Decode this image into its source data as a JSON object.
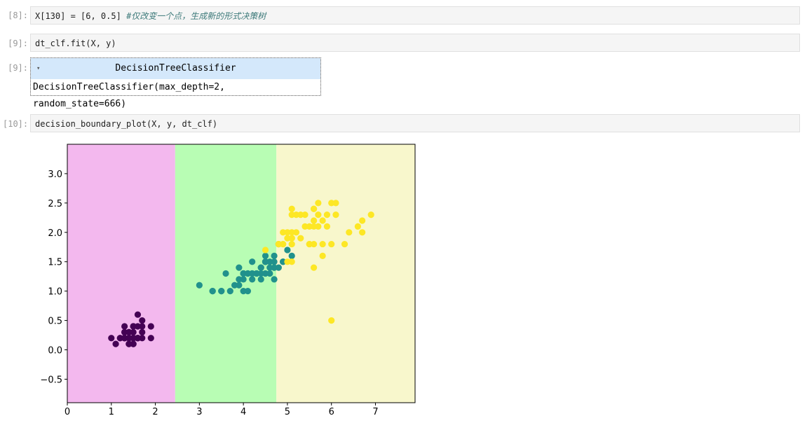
{
  "cells": [
    {
      "prompt": "[8]:",
      "code": "X[130] = [6, 0.5]",
      "comment": "#仅改变一个点，生成新的形式决策树"
    },
    {
      "prompt": "[9]:",
      "code": "dt_clf.fit(X, y)"
    },
    {
      "prompt": "[10]:",
      "code": "decision_boundary_plot(X, y, dt_clf)"
    }
  ],
  "output": {
    "prompt": "[9]:",
    "header": "DecisionTreeClassifier",
    "repr": "DecisionTreeClassifier(max_depth=2, random_state=666)"
  },
  "chart_data": {
    "type": "scatter",
    "xlim": [
      0,
      7.9
    ],
    "ylim": [
      -0.9,
      3.5
    ],
    "xticks": [
      0,
      1,
      2,
      3,
      4,
      5,
      6,
      7
    ],
    "yticks": [
      {
        "value": -0.5,
        "label": "−0.5"
      },
      {
        "value": 0,
        "label": "0.0"
      },
      {
        "value": 0.5,
        "label": "0.5"
      },
      {
        "value": 1,
        "label": "1.0"
      },
      {
        "value": 1.5,
        "label": "1.5"
      },
      {
        "value": 2,
        "label": "2.0"
      },
      {
        "value": 2.5,
        "label": "2.5"
      },
      {
        "value": 3,
        "label": "3.0"
      }
    ],
    "regions": [
      {
        "x": [
          0,
          2.45
        ],
        "color": "#f3b8ee"
      },
      {
        "x": [
          2.45,
          4.75
        ],
        "color": "#b8fdb4"
      },
      {
        "x": [
          4.75,
          7.9
        ],
        "color": "#f8f7cc"
      }
    ],
    "series": [
      {
        "color": "#440154",
        "x": [
          1.4,
          1.4,
          1.3,
          1.5,
          1.4,
          1.7,
          1.4,
          1.5,
          1.4,
          1.5,
          1.5,
          1.6,
          1.4,
          1.1,
          1.2,
          1.5,
          1.3,
          1.4,
          1.7,
          1.5,
          1.7,
          1.5,
          1.0,
          1.7,
          1.9,
          1.6,
          1.6,
          1.5,
          1.4,
          1.6,
          1.6,
          1.5,
          1.5,
          1.4,
          1.5,
          1.2,
          1.3,
          1.4,
          1.3,
          1.5,
          1.3,
          1.3,
          1.3,
          1.6,
          1.9,
          1.4,
          1.6,
          1.4,
          1.5,
          1.4
        ],
        "values": [
          0.2,
          0.2,
          0.2,
          0.2,
          0.2,
          0.4,
          0.3,
          0.2,
          0.2,
          0.1,
          0.2,
          0.2,
          0.1,
          0.1,
          0.2,
          0.4,
          0.4,
          0.3,
          0.3,
          0.3,
          0.2,
          0.4,
          0.2,
          0.5,
          0.2,
          0.2,
          0.4,
          0.2,
          0.2,
          0.2,
          0.2,
          0.4,
          0.1,
          0.2,
          0.2,
          0.2,
          0.2,
          0.1,
          0.2,
          0.2,
          0.3,
          0.3,
          0.2,
          0.6,
          0.4,
          0.3,
          0.2,
          0.2,
          0.2,
          0.2
        ]
      },
      {
        "color": "#21918c",
        "x": [
          4.7,
          4.5,
          4.9,
          4.0,
          4.6,
          4.5,
          4.7,
          3.3,
          4.6,
          3.9,
          3.5,
          4.2,
          4.0,
          4.7,
          3.6,
          4.4,
          4.5,
          4.1,
          4.5,
          3.9,
          4.8,
          4.0,
          4.9,
          4.7,
          4.3,
          4.4,
          4.8,
          5.0,
          4.5,
          3.5,
          3.8,
          3.7,
          3.9,
          5.1,
          4.5,
          4.5,
          4.7,
          4.4,
          4.1,
          4.0,
          4.4,
          4.6,
          4.0,
          3.3,
          4.2,
          4.2,
          4.2,
          4.3,
          3.0,
          4.1
        ],
        "values": [
          1.4,
          1.5,
          1.5,
          1.3,
          1.5,
          1.3,
          1.6,
          1.0,
          1.3,
          1.4,
          1.0,
          1.5,
          1.0,
          1.4,
          1.3,
          1.4,
          1.5,
          1.0,
          1.5,
          1.1,
          1.8,
          1.3,
          1.5,
          1.2,
          1.3,
          1.4,
          1.4,
          1.7,
          1.5,
          1.0,
          1.1,
          1.0,
          1.2,
          1.6,
          1.5,
          1.6,
          1.5,
          1.3,
          1.3,
          1.3,
          1.2,
          1.4,
          1.2,
          1.0,
          1.3,
          1.2,
          1.3,
          1.3,
          1.1,
          1.3
        ]
      },
      {
        "color": "#fde725",
        "x": [
          6.0,
          5.1,
          5.9,
          5.6,
          5.8,
          6.6,
          4.5,
          6.3,
          5.8,
          6.1,
          5.1,
          5.3,
          5.5,
          5.0,
          5.1,
          5.3,
          5.5,
          6.7,
          6.9,
          5.0,
          5.7,
          4.9,
          6.7,
          4.9,
          5.7,
          6.0,
          4.8,
          4.9,
          5.6,
          5.8,
          6,
          6.4,
          5.6,
          5.1,
          5.6,
          6.1,
          5.6,
          5.5,
          4.8,
          5.4,
          5.6,
          5.1,
          5.1,
          5.9,
          5.7,
          5.2,
          5.0,
          5.2,
          5.4,
          5.1
        ],
        "values": [
          2.5,
          1.9,
          2.1,
          1.8,
          2.2,
          2.1,
          1.7,
          1.8,
          1.8,
          2.5,
          2.0,
          1.9,
          2.1,
          2.0,
          2.4,
          2.3,
          1.8,
          2.2,
          2.3,
          1.5,
          2.3,
          2.0,
          2.0,
          1.8,
          2.1,
          1.8,
          1.8,
          1.8,
          2.1,
          1.6,
          0.5,
          2.0,
          2.2,
          1.5,
          1.4,
          2.3,
          2.4,
          1.8,
          1.8,
          2.1,
          2.4,
          2.3,
          1.9,
          2.3,
          2.5,
          2.3,
          1.9,
          2.0,
          2.3,
          1.8
        ]
      }
    ]
  }
}
